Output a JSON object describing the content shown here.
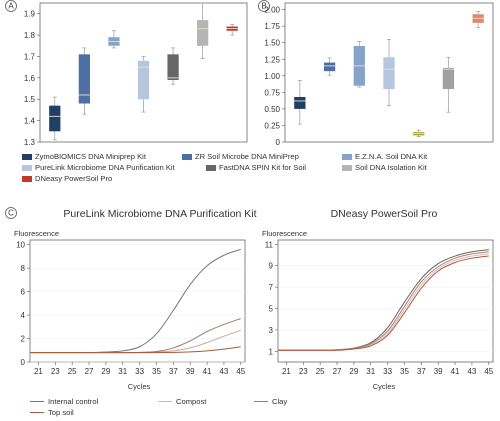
{
  "chart_data": [
    {
      "type": "boxplot",
      "panel_label": "A",
      "ylim": [
        1.3,
        1.95
      ],
      "yticks": [
        "1.3",
        "1.4",
        "1.5",
        "1.6",
        "1.7",
        "1.8",
        "1.9"
      ],
      "series": [
        {
          "name": "ZymoBIOMICS DNA Miniprep Kit",
          "color": "#1f3f66",
          "min": 1.31,
          "q1": 1.35,
          "median": 1.42,
          "q3": 1.47,
          "max": 1.51
        },
        {
          "name": "ZR Soil Microbe DNA MiniPrep",
          "color": "#4e6fa3",
          "min": 1.43,
          "q1": 1.48,
          "median": 1.52,
          "q3": 1.71,
          "max": 1.74
        },
        {
          "name": "E.Z.N.A. Soil DNA Kit",
          "color": "#86a3cc",
          "min": 1.74,
          "q1": 1.75,
          "median": 1.77,
          "q3": 1.79,
          "max": 1.82
        },
        {
          "name": "PureLink Microbiome DNA Purification Kit",
          "color": "#b7c6de",
          "min": 1.44,
          "q1": 1.5,
          "median": 1.65,
          "q3": 1.68,
          "max": 1.7
        },
        {
          "name": "FastDNA SPIN Kit for Soil",
          "color": "#666666",
          "min": 1.57,
          "q1": 1.59,
          "median": 1.6,
          "q3": 1.71,
          "max": 1.74
        },
        {
          "name": "Soil DNA Isolation Kit",
          "color": "#b5b5b5",
          "min": 1.69,
          "q1": 1.75,
          "median": 1.83,
          "q3": 1.87,
          "max": 1.95
        },
        {
          "name": "DNeasy PowerSoil Pro",
          "color": "#c0392b",
          "min": 1.8,
          "q1": 1.82,
          "median": 1.83,
          "q3": 1.84,
          "max": 1.85
        }
      ]
    },
    {
      "type": "boxplot",
      "panel_label": "B",
      "ylim": [
        0,
        2.1
      ],
      "yticks": [
        "0",
        "0.25",
        "0.50",
        "0.75",
        "1.00",
        "1.25",
        "1.50",
        "1.75",
        "2.00"
      ],
      "series": [
        {
          "name": "ZymoBIOMICS DNA Miniprep Kit",
          "color": "#1f3f66",
          "min": 0.27,
          "q1": 0.5,
          "median": 0.62,
          "q3": 0.68,
          "max": 0.93
        },
        {
          "name": "ZR Soil Microbe DNA MiniPrep",
          "color": "#4e6fa3",
          "min": 1.01,
          "q1": 1.07,
          "median": 1.15,
          "q3": 1.2,
          "max": 1.27
        },
        {
          "name": "E.Z.N.A. Soil DNA Kit",
          "color": "#86a3cc",
          "min": 0.83,
          "q1": 0.85,
          "median": 1.15,
          "q3": 1.45,
          "max": 1.52
        },
        {
          "name": "PureLink Microbiome DNA Purification Kit",
          "color": "#b7c6de",
          "min": 0.55,
          "q1": 0.8,
          "median": 1.1,
          "q3": 1.28,
          "max": 1.55
        },
        {
          "name": "FastDNA SPIN Kit for Soil",
          "color": "#a8a82a",
          "min": 0.08,
          "q1": 0.1,
          "median": 0.13,
          "q3": 0.15,
          "max": 0.18
        },
        {
          "name": "Soil DNA Isolation Kit",
          "color": "#a0a0a0",
          "min": 0.45,
          "q1": 0.8,
          "median": 1.1,
          "q3": 1.12,
          "max": 1.28
        },
        {
          "name": "DNeasy PowerSoil Pro",
          "color": "#e0876d",
          "min": 1.73,
          "q1": 1.8,
          "median": 1.87,
          "q3": 1.93,
          "max": 1.97
        }
      ]
    },
    {
      "type": "line",
      "panel_label": "C",
      "title": "PureLink Microbiome DNA Purification Kit",
      "ylabel": "Fluorescence",
      "xlabel": "Cycles",
      "xlim": [
        20,
        45.5
      ],
      "ylim": [
        0,
        10.4
      ],
      "xticks": [
        "21",
        "23",
        "25",
        "27",
        "29",
        "31",
        "33",
        "35",
        "37",
        "39",
        "41",
        "43",
        "45"
      ],
      "yticks": [
        "0",
        "2",
        "4",
        "6",
        "8",
        "10"
      ],
      "x": [
        20,
        21,
        23,
        25,
        27,
        29,
        31,
        33,
        35,
        37,
        39,
        41,
        43,
        45
      ],
      "series": [
        {
          "name": "Internal control",
          "color": "#777777",
          "values": [
            0.8,
            0.8,
            0.8,
            0.8,
            0.8,
            0.85,
            0.95,
            1.3,
            2.4,
            4.4,
            6.6,
            8.2,
            9.1,
            9.6
          ]
        },
        {
          "name": "Compost",
          "color": "#c9a9a3",
          "values": [
            0.8,
            0.8,
            0.8,
            0.8,
            0.8,
            0.8,
            0.8,
            0.8,
            0.85,
            0.95,
            1.2,
            1.65,
            2.2,
            2.7
          ]
        },
        {
          "name": "Clay",
          "color": "#a07a78",
          "values": [
            0.8,
            0.8,
            0.8,
            0.8,
            0.8,
            0.8,
            0.8,
            0.82,
            0.9,
            1.2,
            1.8,
            2.6,
            3.2,
            3.7
          ]
        },
        {
          "name": "Top soil",
          "color": "#a85a3a",
          "values": [
            0.8,
            0.8,
            0.8,
            0.8,
            0.8,
            0.8,
            0.8,
            0.8,
            0.8,
            0.82,
            0.86,
            0.95,
            1.1,
            1.3
          ]
        }
      ]
    },
    {
      "type": "line",
      "title": "DNeasy PowerSoil Pro",
      "ylabel": "Fluorescence",
      "xlabel": "Cycles",
      "xlim": [
        20,
        45.5
      ],
      "ylim": [
        0,
        11.4
      ],
      "xticks": [
        "21",
        "23",
        "25",
        "27",
        "29",
        "31",
        "33",
        "35",
        "37",
        "39",
        "41",
        "43",
        "45"
      ],
      "yticks": [
        "1",
        "3",
        "5",
        "7",
        "9",
        "11"
      ],
      "x": [
        20,
        21,
        23,
        25,
        27,
        29,
        31,
        33,
        35,
        37,
        39,
        41,
        43,
        45
      ],
      "series": [
        {
          "name": "Internal control",
          "color": "#666666",
          "values": [
            1.1,
            1.1,
            1.1,
            1.1,
            1.15,
            1.3,
            1.8,
            3.2,
            5.6,
            7.8,
            9.2,
            9.9,
            10.3,
            10.5
          ]
        },
        {
          "name": "Compost",
          "color": "#d9b8b0",
          "values": [
            1.1,
            1.1,
            1.1,
            1.1,
            1.12,
            1.25,
            1.6,
            2.7,
            4.9,
            7.2,
            8.7,
            9.5,
            9.9,
            10.1
          ]
        },
        {
          "name": "Clay",
          "color": "#b07d7a",
          "values": [
            1.1,
            1.1,
            1.1,
            1.1,
            1.13,
            1.27,
            1.7,
            2.9,
            5.2,
            7.5,
            8.9,
            9.7,
            10.1,
            10.3
          ]
        },
        {
          "name": "Top soil",
          "color": "#a85a3a",
          "values": [
            1.1,
            1.1,
            1.1,
            1.1,
            1.1,
            1.22,
            1.5,
            2.5,
            4.6,
            6.9,
            8.5,
            9.3,
            9.7,
            9.9
          ]
        }
      ]
    }
  ],
  "legend_top": [
    {
      "label": "ZymoBIOMICS DNA Miniprep Kit",
      "color": "#1f3f66"
    },
    {
      "label": "ZR Soil Microbe DNA MiniPrep",
      "color": "#4e6fa3"
    },
    {
      "label": "E.Z.N.A. Soil DNA Kit",
      "color": "#86a3cc"
    },
    {
      "label": "PureLink Microbiome DNA Purification Kit",
      "color": "#b7c6de"
    },
    {
      "label": "FastDNA SPIN Kit for Soil",
      "color": "#666666"
    },
    {
      "label": "Soil DNA Isolation Kit",
      "color": "#b5b5b5"
    },
    {
      "label": "DNeasy PowerSoil Pro",
      "color": "#c0392b"
    }
  ],
  "legend_bottom": [
    {
      "label": "Internal control",
      "color": "#777777"
    },
    {
      "label": "Compost",
      "color": "#d0b8b2"
    },
    {
      "label": "Clay",
      "color": "#a07a78"
    },
    {
      "label": "Top soil",
      "color": "#a85a3a"
    }
  ]
}
